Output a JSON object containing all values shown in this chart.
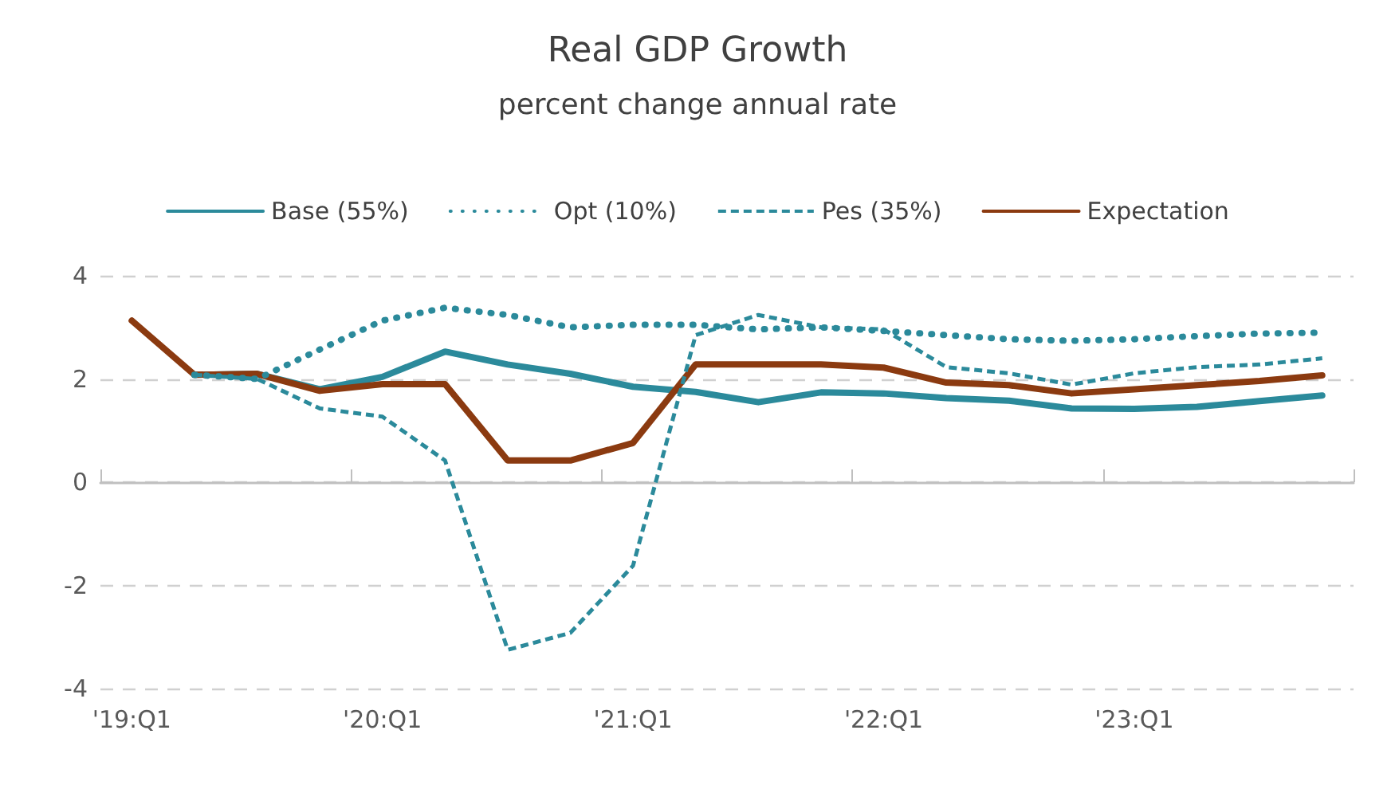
{
  "chart_data": {
    "type": "line",
    "title": "Real GDP Growth",
    "subtitle": "percent change annual rate",
    "categories": [
      "'19:Q1",
      null,
      null,
      null,
      "'20:Q1",
      null,
      null,
      null,
      "'21:Q1",
      null,
      null,
      null,
      "'22:Q1",
      null,
      null,
      null,
      "'23:Q1",
      null,
      null,
      null
    ],
    "series": [
      {
        "name": "Base (55%)",
        "color": "#2b8a9b",
        "line_style": "solid",
        "values": [
          null,
          2.08,
          2.1,
          1.8,
          2.04,
          2.53,
          2.28,
          2.1,
          1.85,
          1.75,
          1.55,
          1.74,
          1.72,
          1.63,
          1.58,
          1.43,
          1.42,
          1.46,
          1.57,
          1.68
        ]
      },
      {
        "name": "Opt (10%)",
        "color": "#2b8a9b",
        "line_style": "dotted",
        "values": [
          null,
          2.08,
          2.0,
          2.57,
          3.13,
          3.38,
          3.24,
          3.0,
          3.05,
          3.05,
          2.96,
          3.0,
          2.93,
          2.85,
          2.77,
          2.74,
          2.77,
          2.83,
          2.88,
          2.9
        ]
      },
      {
        "name": "Pes (35%)",
        "color": "#2b8a9b",
        "line_style": "dashed",
        "values": [
          null,
          2.08,
          2.0,
          1.43,
          1.27,
          0.42,
          -3.25,
          -2.92,
          -1.62,
          2.85,
          3.24,
          3.0,
          2.96,
          2.23,
          2.11,
          1.89,
          2.11,
          2.23,
          2.28,
          2.4
        ]
      },
      {
        "name": "Expectation",
        "color": "#8b3a10",
        "line_style": "solid",
        "values": [
          3.13,
          2.08,
          2.1,
          1.77,
          1.9,
          1.9,
          0.42,
          0.42,
          0.76,
          2.28,
          2.28,
          2.28,
          2.22,
          1.93,
          1.88,
          1.72,
          1.8,
          1.88,
          1.96,
          2.07
        ]
      }
    ],
    "ylim": [
      -4,
      4
    ],
    "yticks": [
      -4,
      -2,
      0,
      2,
      4
    ],
    "grid": "y",
    "legend": "top",
    "marker": "none"
  }
}
